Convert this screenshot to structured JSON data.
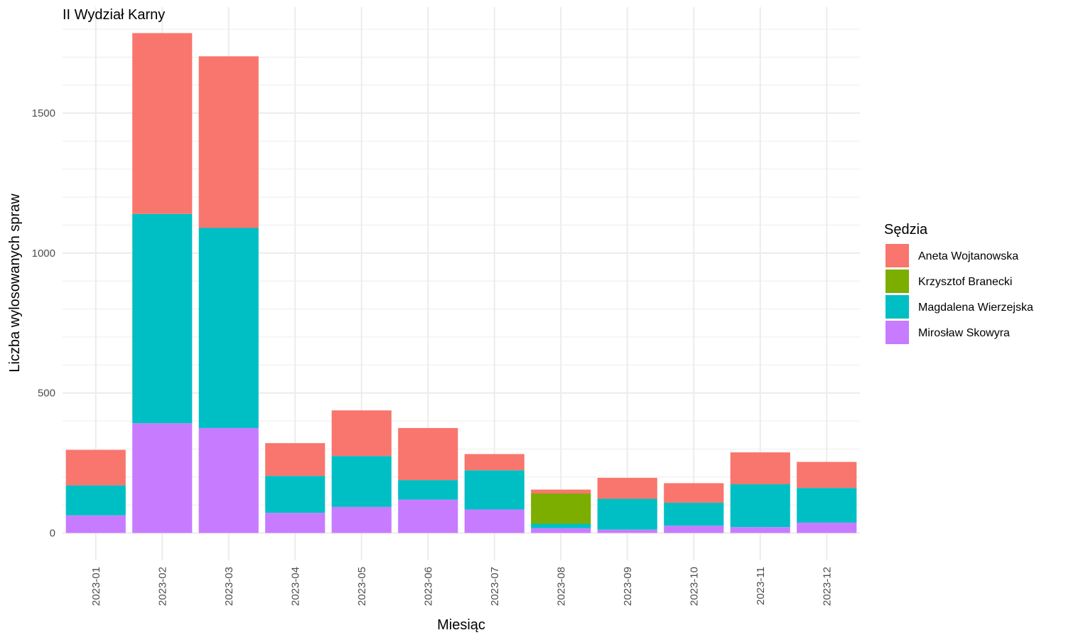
{
  "chart_data": {
    "type": "bar",
    "stacked": true,
    "title": "II Wydział Karny",
    "xlabel": "Miesiąc",
    "ylabel": "Liczba wylosowanych spraw",
    "ylim": [
      -30,
      1800
    ],
    "yticks": [
      0,
      500,
      1000,
      1500
    ],
    "grid": true,
    "legend": {
      "title": "Sędzia",
      "position": "right"
    },
    "categories": [
      "2023-01",
      "2023-02",
      "2023-03",
      "2023-04",
      "2023-05",
      "2023-06",
      "2023-07",
      "2023-08",
      "2023-09",
      "2023-10",
      "2023-11",
      "2023-12"
    ],
    "series": [
      {
        "name": "Aneta Wojtanowska",
        "color": "#F8766D",
        "values": [
          127,
          646,
          613,
          117,
          163,
          186,
          58,
          14,
          75,
          70,
          114,
          93
        ]
      },
      {
        "name": "Krzysztof Branecki",
        "color": "#7CAE00",
        "values": [
          0,
          0,
          0,
          0,
          0,
          0,
          0,
          108,
          0,
          0,
          0,
          0
        ]
      },
      {
        "name": "Magdalena Wierzejska",
        "color": "#00BFC4",
        "values": [
          107,
          748,
          715,
          132,
          182,
          70,
          140,
          16,
          110,
          82,
          153,
          124
        ]
      },
      {
        "name": "Mirosław Skowyra",
        "color": "#C77CFF",
        "values": [
          63,
          392,
          375,
          72,
          93,
          119,
          84,
          17,
          12,
          26,
          21,
          37
        ]
      }
    ]
  }
}
